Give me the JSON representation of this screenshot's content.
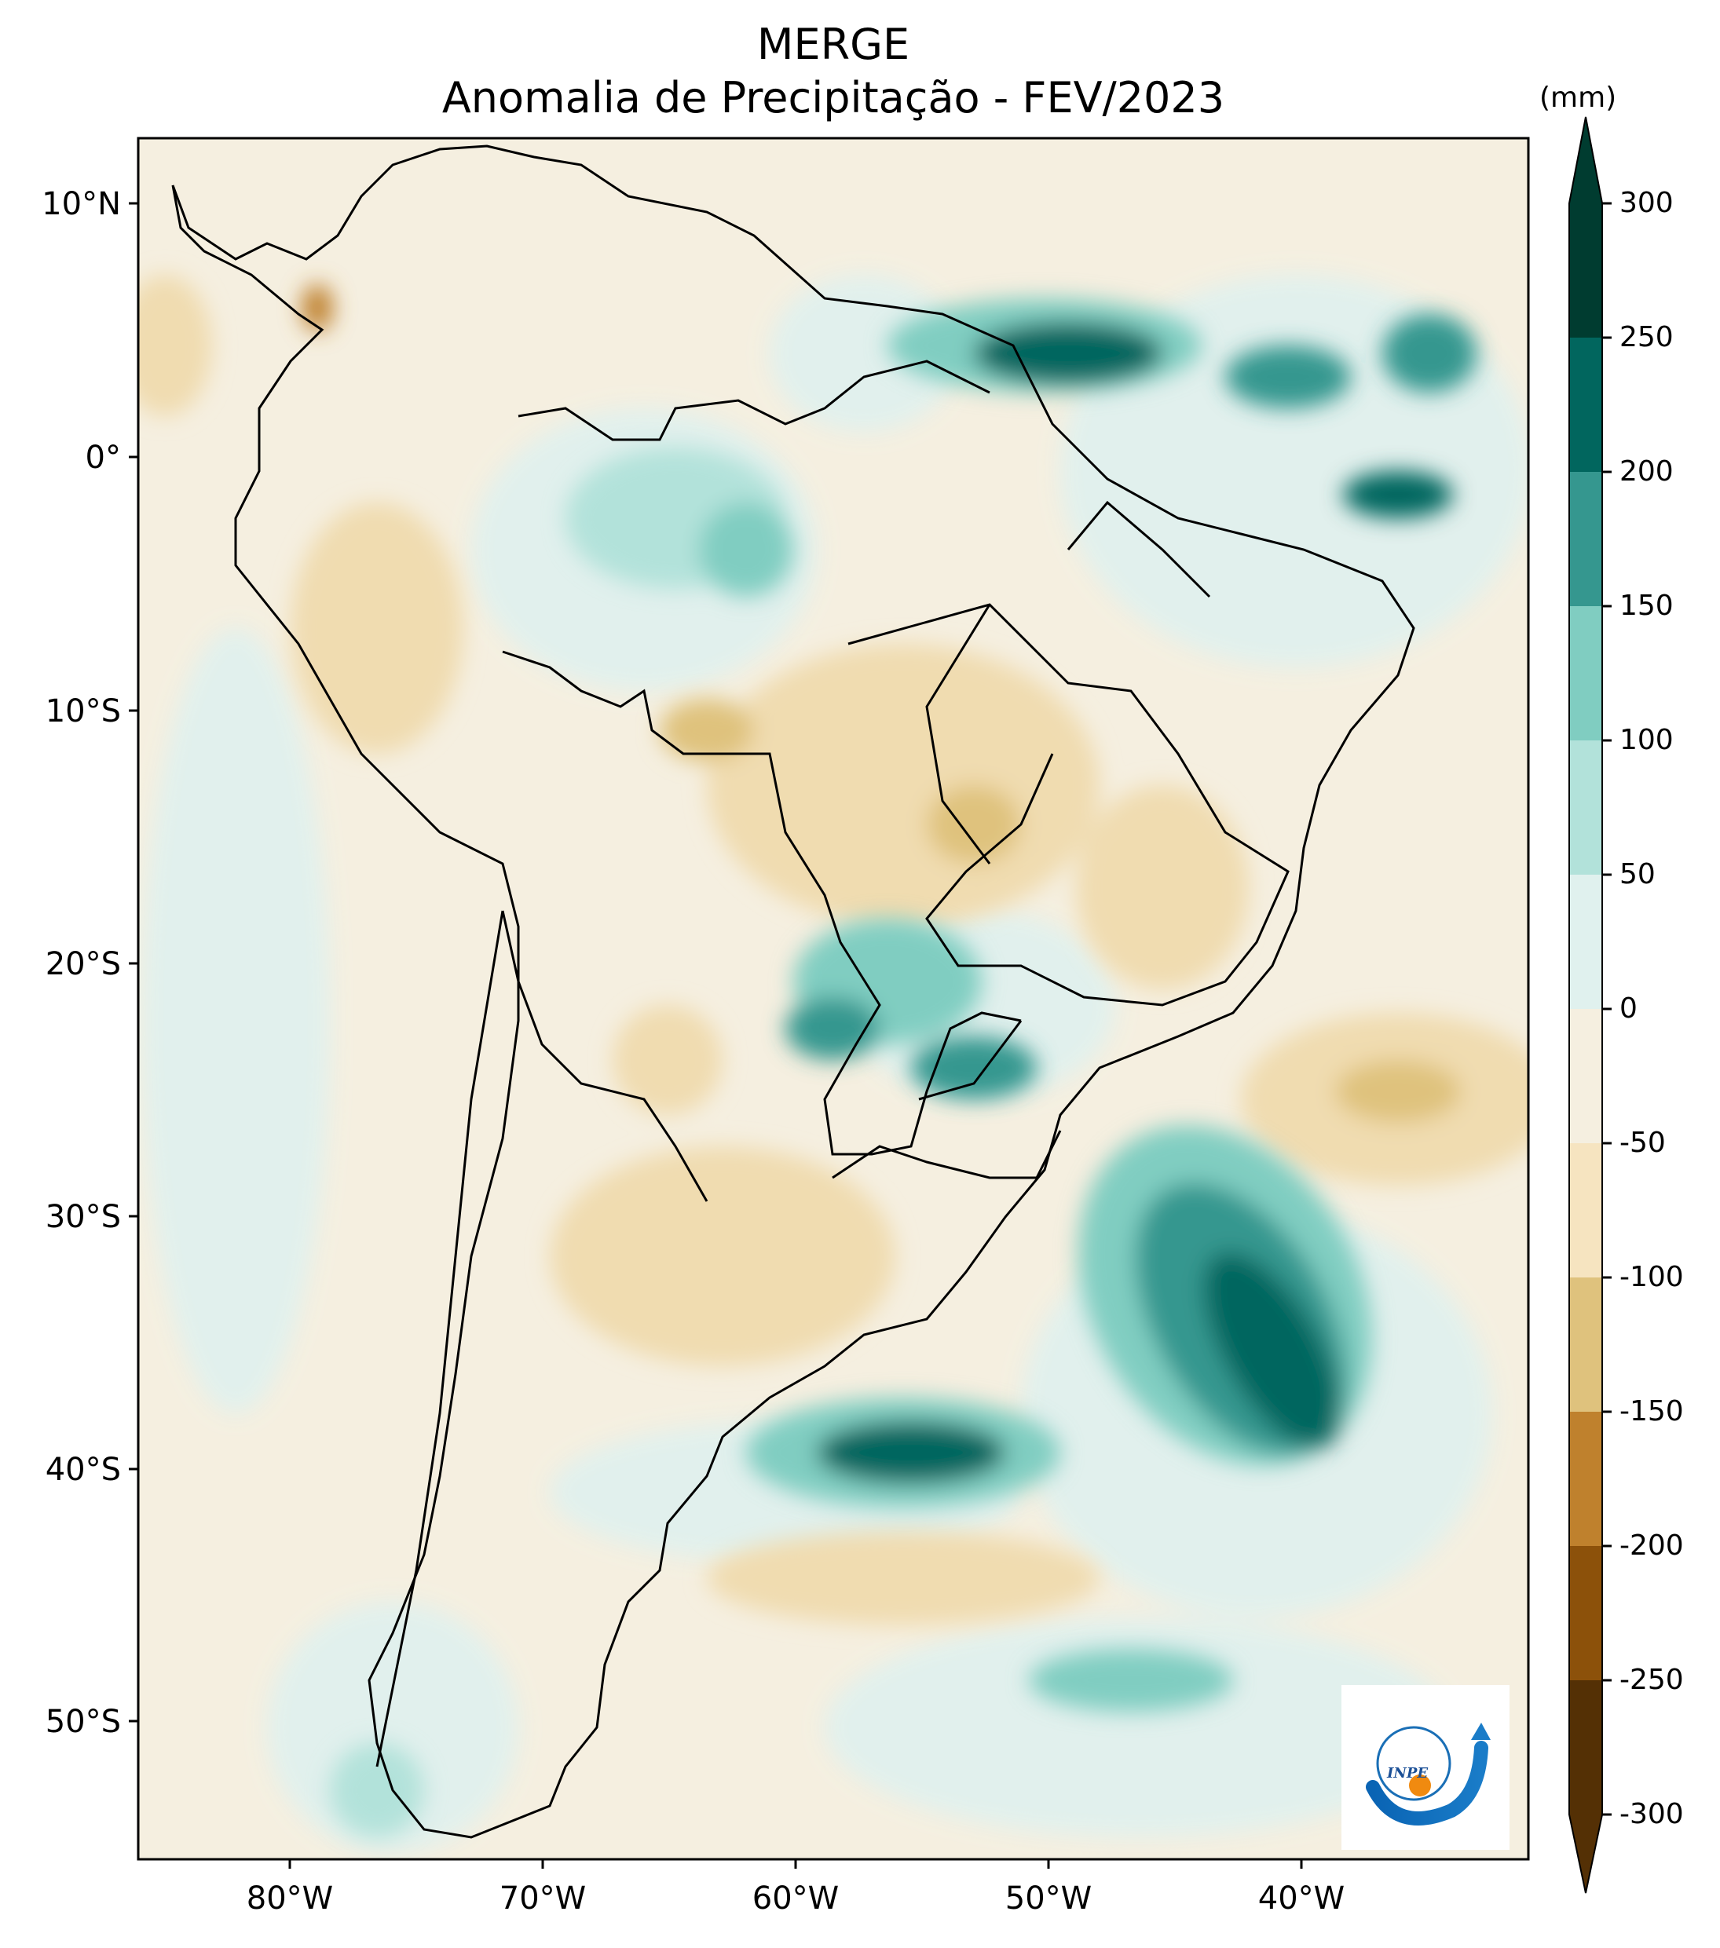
{
  "title": {
    "line1": "MERGE",
    "line2": "Anomalia de Precipitação - FEV/2023"
  },
  "map": {
    "lat_labels": [
      "10°N",
      "0°",
      "10°S",
      "20°S",
      "30°S",
      "40°S",
      "50°S"
    ],
    "lon_labels": [
      "80°W",
      "70°W",
      "60°W",
      "50°W",
      "40°W"
    ],
    "background_color": "#f5efe0"
  },
  "colorbar": {
    "unit": "(mm)",
    "ticks": [
      "300",
      "250",
      "200",
      "150",
      "100",
      "50",
      "0",
      "-50",
      "-100",
      "-150",
      "-200",
      "-250",
      "-300"
    ],
    "colors": [
      "#003c30",
      "#01665e",
      "#35978f",
      "#80cdc1",
      "#b2e2da",
      "#e0f1ee",
      "#f5efe0",
      "#f6e4c0",
      "#dfc27d",
      "#bf812d",
      "#8c510a",
      "#543005"
    ]
  },
  "logo": {
    "text": "INPE"
  }
}
